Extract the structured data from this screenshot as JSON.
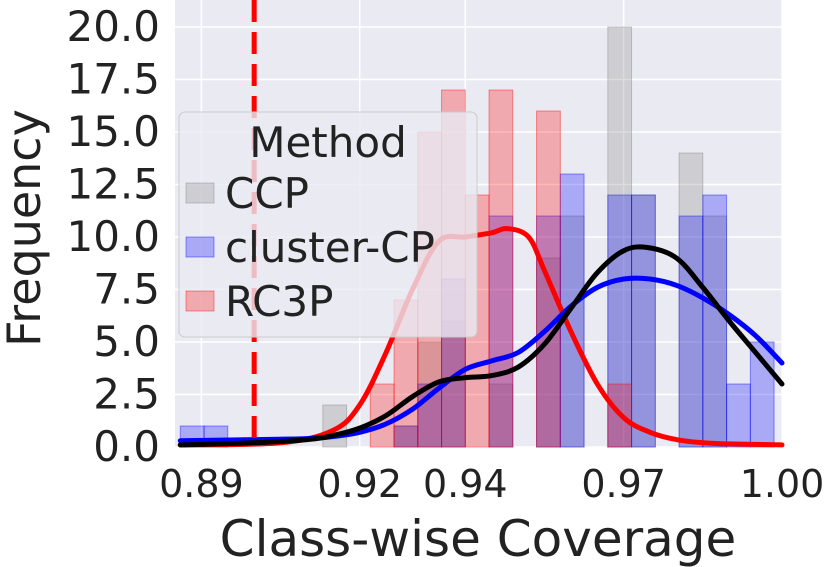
{
  "chart_data": {
    "type": "histogram",
    "title": "",
    "xlabel": "Class-wise Coverage",
    "ylabel": "Frequency",
    "xlim": [
      0.885,
      1.0
    ],
    "ylim": [
      0,
      21
    ],
    "x_ticks": [
      0.89,
      0.92,
      0.94,
      0.97,
      1.0
    ],
    "x_tick_labels": [
      "0.89",
      "0.92",
      "0.94",
      "0.97",
      "1.00"
    ],
    "y_ticks": [
      0,
      2.5,
      5,
      7.5,
      10,
      12.5,
      15,
      17.5,
      20
    ],
    "y_tick_labels": [
      "0.0",
      "2.5",
      "5.0",
      "7.5",
      "10.0",
      "12.5",
      "15.0",
      "17.5",
      "20.0"
    ],
    "grid": true,
    "legend": {
      "title": "Method",
      "placement": "upper-left",
      "entries": [
        "CCP",
        "cluster-CP",
        "RC3P"
      ]
    },
    "reference_line": {
      "x": 0.9,
      "style": "dashed",
      "color": "#ff0000"
    },
    "bin_width": 0.0045,
    "bin_starts": [
      0.886,
      0.8905,
      0.895,
      0.8995,
      0.904,
      0.9085,
      0.913,
      0.9175,
      0.922,
      0.9265,
      0.931,
      0.9355,
      0.94,
      0.9445,
      0.949,
      0.9535,
      0.958,
      0.9625,
      0.967,
      0.9715,
      0.976,
      0.9805,
      0.985,
      0.9895,
      0.994
    ],
    "series": [
      {
        "name": "CCP",
        "color": "#808080",
        "counts": [
          0,
          0,
          0,
          0,
          0,
          0,
          2,
          0,
          0,
          1,
          5,
          6,
          0,
          3,
          0,
          9,
          11,
          0,
          20,
          12,
          0,
          14,
          11,
          0,
          0
        ],
        "kde_x": [
          0.886,
          0.9,
          0.91,
          0.915,
          0.92,
          0.925,
          0.93,
          0.935,
          0.94,
          0.945,
          0.95,
          0.955,
          0.96,
          0.965,
          0.97,
          0.9745,
          0.98,
          0.985,
          0.99,
          0.995,
          1.0
        ],
        "kde_y": [
          0.1,
          0.2,
          0.35,
          0.55,
          0.9,
          1.5,
          2.4,
          3.1,
          3.3,
          3.4,
          3.8,
          4.9,
          6.6,
          8.3,
          9.35,
          9.5,
          9.0,
          7.6,
          6.0,
          4.5,
          3.0
        ]
      },
      {
        "name": "cluster-CP",
        "color": "#0000ff",
        "counts": [
          1,
          1,
          0,
          0,
          0,
          0,
          0,
          0,
          0,
          1,
          3,
          8,
          0,
          11,
          0,
          11,
          13,
          0,
          12,
          12,
          0,
          11,
          12,
          3,
          5
        ],
        "kde_x": [
          0.886,
          0.9,
          0.91,
          0.915,
          0.92,
          0.925,
          0.93,
          0.935,
          0.94,
          0.945,
          0.95,
          0.955,
          0.96,
          0.965,
          0.97,
          0.975,
          0.98,
          0.985,
          0.99,
          0.995,
          1.0
        ],
        "kde_y": [
          0.3,
          0.35,
          0.4,
          0.5,
          0.7,
          1.1,
          1.8,
          2.8,
          3.7,
          4.1,
          4.5,
          5.5,
          6.7,
          7.6,
          8.0,
          8.0,
          7.7,
          7.1,
          6.3,
          5.3,
          4.0
        ]
      },
      {
        "name": "RC3P",
        "color": "#ff0000",
        "counts": [
          0,
          0,
          0,
          0,
          0,
          0,
          0,
          0,
          3,
          7,
          15,
          17,
          12,
          17,
          0,
          16,
          0,
          0,
          3,
          0,
          0,
          0,
          0,
          0,
          0
        ],
        "kde_x": [
          0.886,
          0.905,
          0.915,
          0.92,
          0.925,
          0.93,
          0.935,
          0.94,
          0.945,
          0.948,
          0.952,
          0.955,
          0.96,
          0.965,
          0.97,
          0.975,
          0.98,
          0.985,
          0.99,
          1.0
        ],
        "kde_y": [
          0.1,
          0.2,
          0.8,
          2.0,
          4.5,
          7.5,
          9.8,
          10.0,
          10.2,
          10.4,
          10.0,
          8.4,
          5.5,
          3.0,
          1.4,
          0.7,
          0.35,
          0.2,
          0.15,
          0.1
        ]
      }
    ]
  }
}
